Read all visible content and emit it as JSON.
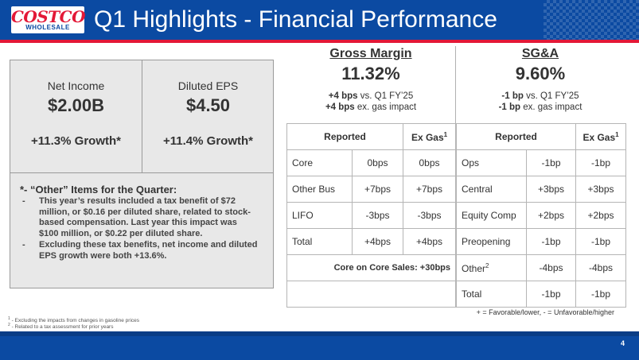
{
  "header": {
    "logo_main": "COSTCO",
    "logo_sub": "WHOLESALE",
    "title": "Q1 Highlights - Financial Performance"
  },
  "colors": {
    "brand_blue": "#0b4aa2",
    "brand_red": "#e31837",
    "panel_gray": "#e8e8e8"
  },
  "kpis": [
    {
      "label": "Net Income",
      "value": "$2.00B",
      "growth": "+11.3% Growth*"
    },
    {
      "label": "Diluted EPS",
      "value": "$4.50",
      "growth": "+11.4% Growth*"
    }
  ],
  "notes": {
    "title": "*- “Other” Items for the Quarter:",
    "items": [
      "This year’s results included a tax benefit of $72 million, or $0.16 per diluted share, related to stock-based compensation. Last year this impact was $100 million, or $0.22 per diluted share.",
      "Excluding these tax benefits, net income and diluted EPS growth were both +13.6%."
    ],
    "dash": "-"
  },
  "gross_margin": {
    "title": "Gross Margin",
    "value": "11.32%",
    "line1_bold": "+4 bps",
    "line1_rest": " vs. Q1 FY’25",
    "line2_bold": "+4 bps",
    "line2_rest": " ex. gas impact",
    "table": {
      "headers": [
        "Reported",
        "Ex Gas"
      ],
      "ex_gas_sup": "1",
      "rows": [
        {
          "label": "Core",
          "reported": "0bps",
          "ex_gas": "0bps"
        },
        {
          "label": "Other Bus",
          "reported": "+7bps",
          "ex_gas": "+7bps"
        },
        {
          "label": "LIFO",
          "reported": "-3bps",
          "ex_gas": "-3bps"
        },
        {
          "label": "Total",
          "reported": "+4bps",
          "ex_gas": "+4bps"
        }
      ],
      "core_on_core": "Core on Core Sales: +30bps"
    }
  },
  "sga": {
    "title": "SG&A",
    "value": "9.60%",
    "line1_bold": "-1 bp",
    "line1_rest": " vs. Q1 FY’25",
    "line2_bold": "-1 bp",
    "line2_rest": " ex. gas impact",
    "table": {
      "headers": [
        "Reported",
        "Ex Gas"
      ],
      "ex_gas_sup": "1",
      "other_sup": "2",
      "rows": [
        {
          "label": "Ops",
          "reported": "-1bp",
          "ex_gas": "-1bp"
        },
        {
          "label": "Central",
          "reported": "+3bps",
          "ex_gas": "+3bps"
        },
        {
          "label": "Equity Comp",
          "reported": "+2bps",
          "ex_gas": "+2bps"
        },
        {
          "label": "Preopening",
          "reported": "-1bp",
          "ex_gas": "-1bp"
        },
        {
          "label": "Other",
          "reported": "-4bps",
          "ex_gas": "-4bps"
        },
        {
          "label": "Total",
          "reported": "-1bp",
          "ex_gas": "-1bp"
        }
      ]
    }
  },
  "legend": "+ = Favorable/lower, - = Unfavorable/higher",
  "footnotes": [
    {
      "sup": "1",
      "text": " - Excluding the impacts from changes in gasoline prices"
    },
    {
      "sup": "2",
      "text": " - Related to a tax assessment for prior years"
    }
  ],
  "page_number": "4"
}
